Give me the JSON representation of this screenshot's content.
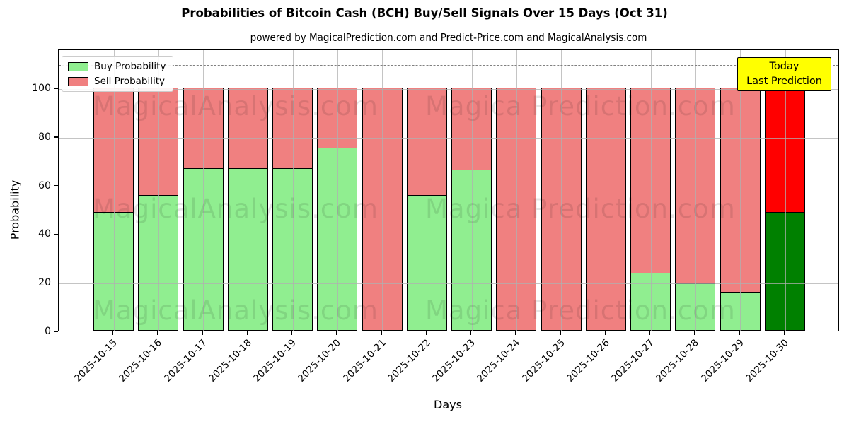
{
  "title": "Probabilities of Bitcoin Cash (BCH) Buy/Sell Signals Over 15 Days (Oct 31)",
  "subtitle": "powered by MagicalPrediction.com and Predict-Price.com and MagicalAnalysis.com",
  "legend": {
    "buy_label": "Buy Probability",
    "sell_label": "Sell Probability"
  },
  "annotation": {
    "line1": "Today",
    "line2": "Last Prediction"
  },
  "watermarks": {
    "left_text": "MagicalAnalysis.com",
    "right_text": "Magica Prediction.com"
  },
  "axes": {
    "ylabel": "Probability",
    "xlabel": "Days",
    "yticks": [
      0,
      20,
      40,
      60,
      80,
      100
    ],
    "grid": true,
    "legend_position": "upper left"
  },
  "colors": {
    "buy": "#90EE90",
    "sell": "#F08080",
    "today_buy": "#008000",
    "today_sell": "#FF0000",
    "annotation_bg": "#FFFF00",
    "grid": "#b0b0b0",
    "dashed_line": "#808080"
  },
  "chart_data": {
    "type": "bar",
    "stacked": true,
    "title": "Probabilities of Bitcoin Cash (BCH) Buy/Sell Signals Over 15 Days (Oct 31)",
    "xlabel": "Days",
    "ylabel": "Probability",
    "ylim": [
      0,
      116
    ],
    "dashed_line_y": 110,
    "categories": [
      "2025-10-15",
      "2025-10-16",
      "2025-10-17",
      "2025-10-18",
      "2025-10-19",
      "2025-10-20",
      "2025-10-21",
      "2025-10-22",
      "2025-10-23",
      "2025-10-24",
      "2025-10-25",
      "2025-10-26",
      "2025-10-27",
      "2025-10-28",
      "2025-10-29",
      "2025-10-30"
    ],
    "series": [
      {
        "name": "Buy Probability",
        "values": [
          49,
          56,
          67,
          67,
          67,
          75.5,
          0,
          56,
          66.5,
          0,
          0,
          0,
          24,
          19.5,
          16,
          49
        ]
      },
      {
        "name": "Sell Probability",
        "values": [
          51,
          44,
          33,
          33,
          33,
          24.5,
          100,
          44,
          33.5,
          100,
          100,
          100,
          76,
          80.5,
          84,
          51
        ]
      }
    ],
    "today_index": 15
  }
}
